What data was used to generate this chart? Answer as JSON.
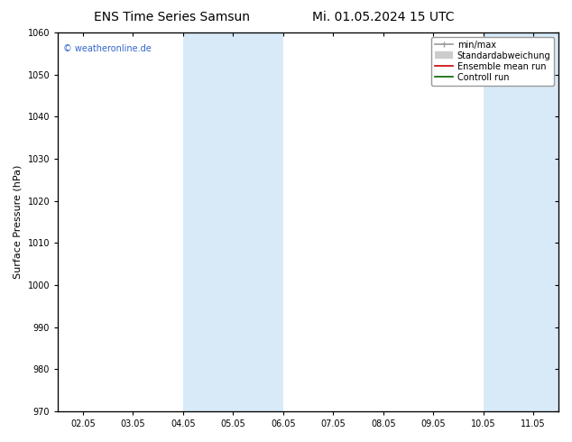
{
  "title_left": "ENS Time Series Samsun",
  "title_right": "Mi. 01.05.2024 15 UTC",
  "ylabel": "Surface Pressure (hPa)",
  "ylim": [
    970,
    1060
  ],
  "yticks": [
    970,
    980,
    990,
    1000,
    1010,
    1020,
    1030,
    1040,
    1050,
    1060
  ],
  "x_labels": [
    "02.05",
    "03.05",
    "04.05",
    "05.05",
    "06.05",
    "07.05",
    "08.05",
    "09.05",
    "10.05",
    "11.05"
  ],
  "x_positions": [
    0,
    1,
    2,
    3,
    4,
    5,
    6,
    7,
    8,
    9
  ],
  "xlim": [
    -0.5,
    9.5
  ],
  "shaded_bands": [
    {
      "x_start": 2,
      "x_end": 3,
      "color": "#d8eaf8"
    },
    {
      "x_start": 3,
      "x_end": 4,
      "color": "#d8eaf8"
    },
    {
      "x_start": 8,
      "x_end": 9,
      "color": "#d8eaf8"
    },
    {
      "x_start": 9,
      "x_end": 9.5,
      "color": "#d8eaf8"
    }
  ],
  "watermark": "© weatheronline.de",
  "watermark_color": "#3366cc",
  "legend_entries": [
    {
      "label": "min/max",
      "color": "#999999",
      "lw": 1.2,
      "type": "line_with_caps"
    },
    {
      "label": "Standardabweichung",
      "color": "#cccccc",
      "lw": 6,
      "type": "thick"
    },
    {
      "label": "Ensemble mean run",
      "color": "#cc0000",
      "lw": 1.2,
      "type": "line"
    },
    {
      "label": "Controll run",
      "color": "#006600",
      "lw": 1.2,
      "type": "line"
    }
  ],
  "bg_color": "#ffffff",
  "plot_bg_color": "#ffffff",
  "title_fontsize": 10,
  "tick_fontsize": 7,
  "ylabel_fontsize": 8,
  "legend_fontsize": 7
}
